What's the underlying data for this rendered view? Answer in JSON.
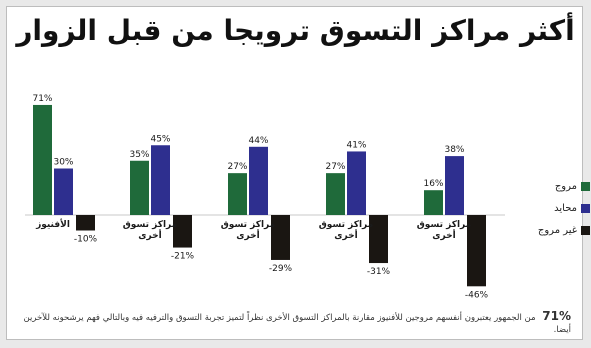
{
  "colors": {
    "favorite": "#1f6a3a",
    "neutral": "#2e2f8f",
    "disliked": "#1a1612"
  },
  "chart_data": {
    "type": "bar",
    "title": "أكثر مراكز التسوق ترويجا من قبل الزوار",
    "categories": [
      "الأفنيوز",
      "مراكز تسوق أخرى",
      "مراكز تسوق أخرى",
      "مراكز تسوق أخرى",
      "مراكز تسوق أخرى"
    ],
    "series": [
      {
        "name": "مروج",
        "values": [
          71,
          35,
          27,
          27,
          16
        ],
        "labels": [
          "71%",
          "35%",
          "27%",
          "27%",
          "16%"
        ]
      },
      {
        "name": "محايد",
        "values": [
          30,
          45,
          44,
          41,
          38
        ],
        "labels": [
          "30%",
          "45%",
          "44%",
          "41%",
          "38%"
        ]
      },
      {
        "name": "غير مروج",
        "values": [
          -10,
          -21,
          -29,
          -31,
          -46
        ],
        "labels": [
          "-10%",
          "-21%",
          "-29%",
          "-31%",
          "-46%"
        ]
      }
    ],
    "ylim": [
      -46,
      71
    ],
    "legend": "right"
  },
  "footnote": {
    "highlight": "71%",
    "text": "من الجمهور يعتبرون أنفسهم مروجين للأفنيوز مقارنة بالمراكز التسوق الأخرى نظراً لتميز تجربة التسوق والترفيه فيه وبالتالي فهم يرشحونه للآخرين أيضا."
  }
}
